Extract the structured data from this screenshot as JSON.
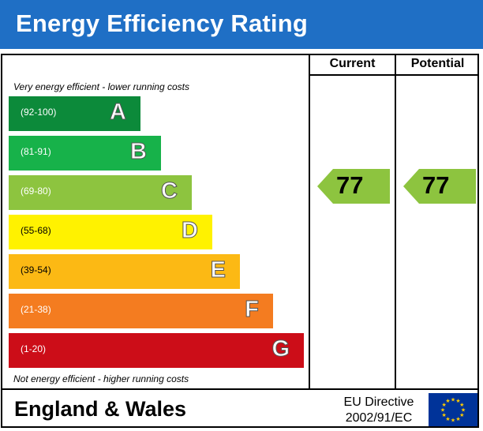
{
  "header": {
    "title": "Energy Efficiency Rating"
  },
  "columns": {
    "current": "Current",
    "potential": "Potential"
  },
  "notes": {
    "top": "Very energy efficient - lower running costs",
    "bottom": "Not energy efficient - higher running costs"
  },
  "chart_data": {
    "type": "bar",
    "bands": [
      {
        "letter": "A",
        "range": "(92-100)",
        "color": "#0c8a3a",
        "range_color": "#ffffff"
      },
      {
        "letter": "B",
        "range": "(81-91)",
        "color": "#17b24a",
        "range_color": "#ffffff"
      },
      {
        "letter": "C",
        "range": "(69-80)",
        "color": "#8dc43f",
        "range_color": "#ffffff"
      },
      {
        "letter": "D",
        "range": "(55-68)",
        "color": "#fff200",
        "range_color": "#000000"
      },
      {
        "letter": "E",
        "range": "(39-54)",
        "color": "#fcb914",
        "range_color": "#000000"
      },
      {
        "letter": "F",
        "range": "(21-38)",
        "color": "#f47c20",
        "range_color": "#ffffff"
      },
      {
        "letter": "G",
        "range": "(1-20)",
        "color": "#cc0d18",
        "range_color": "#ffffff"
      }
    ],
    "current": {
      "value": 77,
      "band": "C",
      "color": "#8dc43f"
    },
    "potential": {
      "value": 77,
      "band": "C",
      "color": "#8dc43f"
    }
  },
  "footer": {
    "region": "England & Wales",
    "directive_line1": "EU Directive",
    "directive_line2": "2002/91/EC",
    "flag_color": "#003399",
    "star_color": "#ffcc00"
  }
}
